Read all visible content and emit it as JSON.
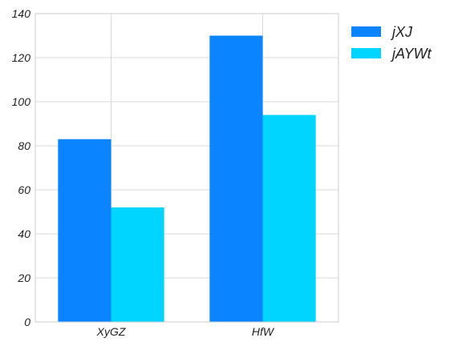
{
  "chart_data": {
    "type": "bar",
    "categories": [
      "XyGZ",
      "HfW"
    ],
    "series": [
      {
        "name": "jXJ",
        "values": [
          83,
          130
        ],
        "color": "#0a84ff"
      },
      {
        "name": "jAYWt",
        "values": [
          52,
          94
        ],
        "color": "#00d5ff"
      }
    ],
    "ylim": [
      0,
      140
    ],
    "yticks": [
      0,
      20,
      40,
      60,
      80,
      100,
      120,
      140
    ],
    "grid": true,
    "legend": "top-right"
  }
}
